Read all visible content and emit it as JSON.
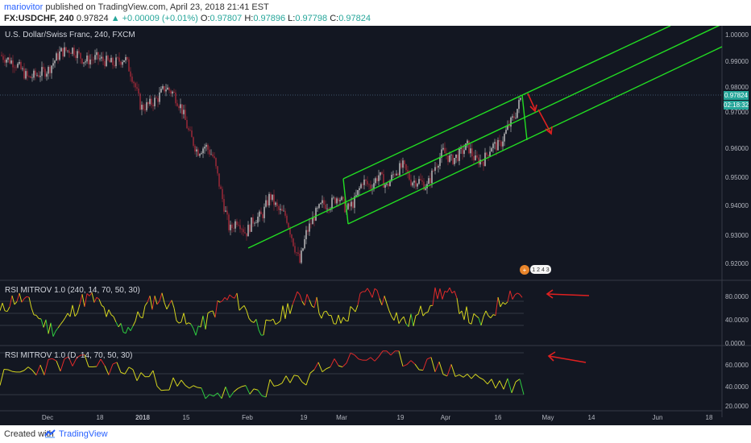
{
  "header": {
    "author": "mariovitor",
    "published_text": " published on TradingView.com, April 23, 2018 21:41 EST",
    "symbol": "FX:USDCHF, 240",
    "last": "0.97824",
    "change": "▲ +0.00009 (+0.01%)",
    "o_label": "O:",
    "o_val": "0.97807",
    "h_label": "H:",
    "h_val": "0.97896",
    "l_label": "L:",
    "l_val": "0.97798",
    "c_label": "C:",
    "c_val": "0.97824"
  },
  "main_pane": {
    "title": "U.S. Dollar/Swiss Franc, 240, FXCM",
    "yticks": [
      "1.00000",
      "0.99000",
      "0.98000",
      "0.97000",
      "0.96000",
      "0.95000",
      "0.94000",
      "0.93000",
      "0.92000"
    ],
    "price_label": "0.97824",
    "countdown_label": "02:18:32",
    "event_badge": "1 2 4 3"
  },
  "rsi1": {
    "title": "RSI MITROV 1.0 (240, 14, 70, 50, 30)",
    "yticks": [
      "80.0000",
      "40.0000",
      "0.0000"
    ]
  },
  "rsi2": {
    "title": "RSI MITROV 1.0 (D, 14, 70, 50, 30)",
    "yticks": [
      "60.0000",
      "40.0000",
      "20.0000"
    ]
  },
  "xaxis": {
    "ticks": [
      "Dec",
      "18",
      "2018",
      "15",
      "Feb",
      "19",
      "Mar",
      "19",
      "Apr",
      "16",
      "May",
      "14",
      "Jun",
      "18"
    ]
  },
  "footer": {
    "created": "Created with",
    "brand": "TradingView"
  },
  "colors": {
    "background": "#131722",
    "channel": "#22dd22",
    "arrow": "#e02020",
    "up_candle": "#c8c8c8",
    "down_candle": "#a52a3a",
    "price_tag": "#26a69a",
    "rsi_green": "#2ecc40",
    "rsi_yellow": "#d4d41e",
    "rsi_red": "#e02a2a"
  },
  "chart_data": {
    "type": "candlestick",
    "symbol": "FX:USDCHF",
    "interval": "240",
    "y_range": [
      0.916,
      1.003
    ],
    "close_path_points": [
      [
        0,
        0.993
      ],
      [
        20,
        0.99
      ],
      [
        35,
        0.985
      ],
      [
        60,
        0.988
      ],
      [
        75,
        0.994
      ],
      [
        90,
        0.995
      ],
      [
        105,
        0.991
      ],
      [
        120,
        0.992
      ],
      [
        140,
        0.99
      ],
      [
        155,
        0.992
      ],
      [
        165,
        0.985
      ],
      [
        175,
        0.975
      ],
      [
        185,
        0.976
      ],
      [
        195,
        0.978
      ],
      [
        205,
        0.982
      ],
      [
        215,
        0.98
      ],
      [
        225,
        0.975
      ],
      [
        235,
        0.966
      ],
      [
        245,
        0.96
      ],
      [
        255,
        0.962
      ],
      [
        265,
        0.958
      ],
      [
        275,
        0.945
      ],
      [
        285,
        0.933
      ],
      [
        295,
        0.937
      ],
      [
        305,
        0.932
      ],
      [
        315,
        0.937
      ],
      [
        325,
        0.938
      ],
      [
        335,
        0.945
      ],
      [
        345,
        0.94
      ],
      [
        355,
        0.938
      ],
      [
        365,
        0.928
      ],
      [
        372,
        0.922
      ],
      [
        380,
        0.932
      ],
      [
        390,
        0.938
      ],
      [
        400,
        0.942
      ],
      [
        410,
        0.942
      ],
      [
        420,
        0.945
      ],
      [
        430,
        0.94
      ],
      [
        440,
        0.943
      ],
      [
        450,
        0.95
      ],
      [
        460,
        0.948
      ],
      [
        470,
        0.952
      ],
      [
        480,
        0.948
      ],
      [
        490,
        0.953
      ],
      [
        500,
        0.955
      ],
      [
        510,
        0.95
      ],
      [
        520,
        0.95
      ],
      [
        530,
        0.948
      ],
      [
        540,
        0.955
      ],
      [
        550,
        0.96
      ],
      [
        560,
        0.957
      ],
      [
        570,
        0.959
      ],
      [
        580,
        0.962
      ],
      [
        590,
        0.957
      ],
      [
        600,
        0.957
      ],
      [
        610,
        0.962
      ],
      [
        620,
        0.962
      ],
      [
        630,
        0.968
      ],
      [
        640,
        0.973
      ],
      [
        646,
        0.978
      ]
    ]
  }
}
